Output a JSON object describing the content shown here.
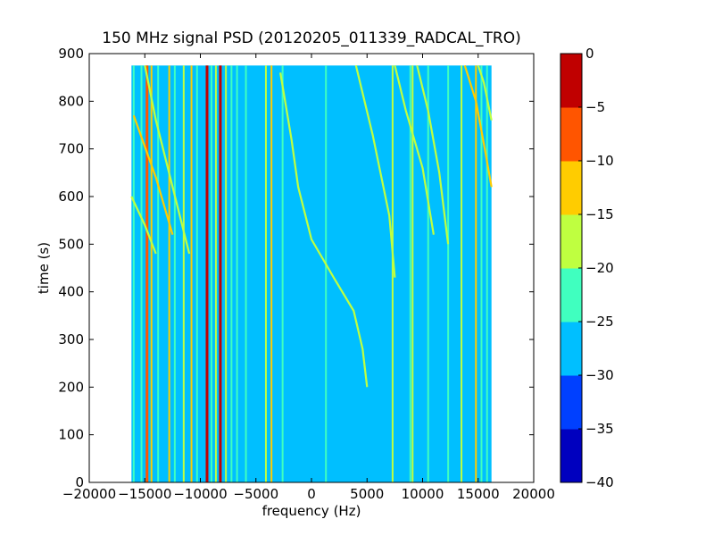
{
  "chart_data": {
    "type": "heatmap",
    "title": "150 MHz signal PSD (20120205_011339_RADCAL_TRO)",
    "xlabel": "frequency (Hz)",
    "ylabel": "time (s)",
    "xlim": [
      -20000,
      20000
    ],
    "ylim": [
      0,
      900
    ],
    "data_extent_x": [
      -16200,
      16200
    ],
    "data_extent_y": [
      0,
      875
    ],
    "xticks": [
      -20000,
      -15000,
      -10000,
      -5000,
      0,
      5000,
      10000,
      15000,
      20000
    ],
    "xtick_labels": [
      "−20000",
      "−15000",
      "−10000",
      "−5000",
      "0",
      "5000",
      "10000",
      "15000",
      "20000"
    ],
    "yticks": [
      0,
      100,
      200,
      300,
      400,
      500,
      600,
      700,
      800,
      900
    ],
    "ytick_labels": [
      "0",
      "100",
      "200",
      "300",
      "400",
      "500",
      "600",
      "700",
      "800",
      "900"
    ],
    "colorbar": {
      "min": -40,
      "max": 0,
      "levels": [
        -40,
        -35,
        -30,
        -25,
        -20,
        -15,
        -10,
        -5,
        0
      ],
      "tick_labels": [
        "−40",
        "−35",
        "−30",
        "−25",
        "−20",
        "−15",
        "−10",
        "−5",
        "0"
      ],
      "colors": [
        "#0000bf",
        "#0040ff",
        "#00bfff",
        "#40ffbf",
        "#bfff40",
        "#ffcc00",
        "#ff5500",
        "#c00000"
      ]
    },
    "background_level": -27.5,
    "vertical_lines": [
      {
        "x": -16000,
        "level": -22.5
      },
      {
        "x": -15300,
        "level": -22.5
      },
      {
        "x": -14800,
        "level": -7.5
      },
      {
        "x": -14400,
        "level": -12.5
      },
      {
        "x": -13800,
        "level": -22.5
      },
      {
        "x": -12800,
        "level": -12.5
      },
      {
        "x": -12300,
        "level": -22.5
      },
      {
        "x": -11500,
        "level": -17.5
      },
      {
        "x": -10800,
        "level": -12.5
      },
      {
        "x": -10300,
        "level": -22.5
      },
      {
        "x": -9400,
        "level": -2.5
      },
      {
        "x": -9000,
        "level": -22.5
      },
      {
        "x": -8600,
        "level": -17.5
      },
      {
        "x": -8200,
        "level": -2.5
      },
      {
        "x": -7700,
        "level": -17.5
      },
      {
        "x": -7200,
        "level": -22.5
      },
      {
        "x": -6700,
        "level": -22.5
      },
      {
        "x": -5900,
        "level": -22.5
      },
      {
        "x": -4100,
        "level": -17.5
      },
      {
        "x": -3600,
        "level": -12.5
      },
      {
        "x": -2600,
        "level": -22.5
      },
      {
        "x": 1300,
        "level": -22.5
      },
      {
        "x": 7300,
        "level": -17.5
      },
      {
        "x": 8900,
        "level": -22.5
      },
      {
        "x": 9100,
        "level": -17.5
      },
      {
        "x": 10500,
        "level": -22.5
      },
      {
        "x": 12300,
        "level": -22.5
      },
      {
        "x": 13500,
        "level": -17.5
      },
      {
        "x": 14800,
        "level": -12.5
      },
      {
        "x": 15300,
        "level": -22.5
      },
      {
        "x": 15800,
        "level": -22.5
      }
    ],
    "drift_tracks": [
      {
        "level": -17.5,
        "points": [
          [
            5000,
            200
          ],
          [
            4600,
            280
          ],
          [
            3800,
            360
          ],
          [
            2000,
            430
          ],
          [
            0,
            510
          ],
          [
            -1200,
            620
          ],
          [
            -1800,
            720
          ],
          [
            -2800,
            860
          ]
        ]
      },
      {
        "level": -17.5,
        "points": [
          [
            7500,
            430
          ],
          [
            7000,
            560
          ],
          [
            5500,
            730
          ],
          [
            4000,
            875
          ]
        ]
      },
      {
        "level": -17.5,
        "points": [
          [
            11000,
            520
          ],
          [
            10000,
            660
          ],
          [
            8500,
            780
          ],
          [
            7500,
            875
          ]
        ]
      },
      {
        "level": -17.5,
        "points": [
          [
            12300,
            500
          ],
          [
            11500,
            650
          ],
          [
            10500,
            780
          ],
          [
            9500,
            875
          ]
        ]
      },
      {
        "level": -12.5,
        "points": [
          [
            16200,
            620
          ],
          [
            15600,
            700
          ],
          [
            14800,
            800
          ],
          [
            13800,
            875
          ]
        ]
      },
      {
        "level": -17.5,
        "points": [
          [
            16200,
            760
          ],
          [
            15500,
            840
          ],
          [
            15000,
            875
          ]
        ]
      },
      {
        "level": -17.5,
        "points": [
          [
            -11000,
            480
          ],
          [
            -12500,
            620
          ],
          [
            -14000,
            760
          ],
          [
            -15000,
            875
          ]
        ]
      },
      {
        "level": -12.5,
        "points": [
          [
            -12500,
            520
          ],
          [
            -14000,
            640
          ],
          [
            -16000,
            770
          ]
        ]
      },
      {
        "level": -17.5,
        "points": [
          [
            -14000,
            480
          ],
          [
            -15000,
            540
          ],
          [
            -16200,
            600
          ]
        ]
      }
    ]
  }
}
